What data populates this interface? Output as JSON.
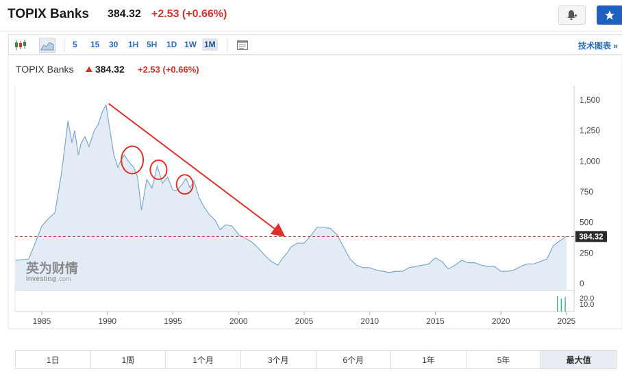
{
  "header": {
    "title": "TOPIX Banks",
    "price": "384.32",
    "change": "+2.53 (+0.66%)"
  },
  "toolbar": {
    "timeframes": [
      "5",
      "15",
      "30",
      "1H",
      "5H",
      "1D",
      "1W",
      "1M"
    ],
    "active_timeframe": "1M",
    "advanced_label": "技术图表 »"
  },
  "subheader": {
    "title": "TOPIX Banks",
    "price": "384.32",
    "change": "+2.53 (+0.66%)"
  },
  "watermark": {
    "cn": "英为财情",
    "en": "Investing",
    "suffix": ".com"
  },
  "range_tabs": [
    "1日",
    "1周",
    "1个月",
    "3个月",
    "6个月",
    "1年",
    "5年",
    "最大值"
  ],
  "active_range": "最大值",
  "colors": {
    "line": "#7ba7cf",
    "area": "#e3ecf5",
    "down": "#d2322d",
    "accent": "#1f5fbf"
  },
  "chart_data": {
    "type": "area",
    "x_ticks": [
      1985,
      1990,
      1995,
      2000,
      2005,
      2010,
      2015,
      2020,
      2025
    ],
    "y_ticks": [
      0,
      250,
      500,
      750,
      1000,
      1250,
      1500
    ],
    "y_tick_labels": [
      "0",
      "250",
      "500",
      "750",
      "1,000",
      "1,250",
      "1,500"
    ],
    "ylim": [
      0,
      1550
    ],
    "xlim": [
      1983,
      2025.2
    ],
    "current_value_label": "384.32",
    "current_value": 384.32,
    "volume_ticks": [
      "20.0",
      "10.0"
    ],
    "series": [
      {
        "x": [
          1983.0,
          1984.0,
          1984.5,
          1985.0,
          1985.5,
          1986.0,
          1986.5,
          1987.0,
          1987.3,
          1987.5,
          1987.8,
          1988.0,
          1988.3,
          1988.6,
          1989.0,
          1989.3,
          1989.6,
          1989.9,
          1990.2,
          1990.5,
          1990.8,
          1991.0,
          1991.3,
          1991.6,
          1992.0,
          1992.3,
          1992.6,
          1993.0,
          1993.4,
          1993.8,
          1994.2,
          1994.6,
          1995.0,
          1995.3,
          1995.7,
          1996.0,
          1996.3,
          1996.6,
          1997.0,
          1997.4,
          1997.8,
          1998.2,
          1998.6,
          1999.0,
          1999.5,
          2000.0,
          2000.5,
          2001.0,
          2001.5,
          2002.0,
          2002.5,
          2003.0,
          2003.3,
          2003.7,
          2004.0,
          2004.5,
          2005.0,
          2005.5,
          2006.0,
          2006.5,
          2007.0,
          2007.5,
          2008.0,
          2008.5,
          2009.0,
          2009.5,
          2010.0,
          2010.5,
          2011.0,
          2011.5,
          2012.0,
          2012.5,
          2013.0,
          2013.5,
          2014.0,
          2014.5,
          2015.0,
          2015.5,
          2016.0,
          2016.5,
          2017.0,
          2017.5,
          2018.0,
          2018.5,
          2019.0,
          2019.5,
          2020.0,
          2020.5,
          2021.0,
          2021.5,
          2022.0,
          2022.5,
          2023.0,
          2023.5,
          2024.0,
          2024.5,
          2025.0
        ],
        "y": [
          190,
          200,
          330,
          470,
          530,
          580,
          900,
          1330,
          1150,
          1250,
          1050,
          1150,
          1200,
          1120,
          1250,
          1300,
          1400,
          1460,
          1250,
          1050,
          950,
          1000,
          1050,
          1000,
          950,
          870,
          600,
          850,
          780,
          960,
          820,
          870,
          760,
          760,
          810,
          860,
          780,
          840,
          700,
          620,
          560,
          520,
          440,
          480,
          470,
          400,
          370,
          340,
          290,
          230,
          180,
          150,
          200,
          250,
          300,
          330,
          330,
          390,
          460,
          460,
          450,
          400,
          300,
          200,
          150,
          130,
          130,
          110,
          100,
          90,
          100,
          100,
          130,
          140,
          150,
          160,
          210,
          180,
          120,
          150,
          190,
          170,
          170,
          150,
          140,
          140,
          100,
          100,
          110,
          140,
          160,
          160,
          180,
          200,
          310,
          350,
          384.32
        ]
      }
    ],
    "annotations": {
      "trend_arrow": {
        "from": [
          1990.1,
          1470
        ],
        "to": [
          2003.4,
          395
        ]
      },
      "circles_at": [
        [
          1991.9,
          1010
        ],
        [
          1993.9,
          930
        ],
        [
          1995.9,
          810
        ]
      ]
    }
  }
}
